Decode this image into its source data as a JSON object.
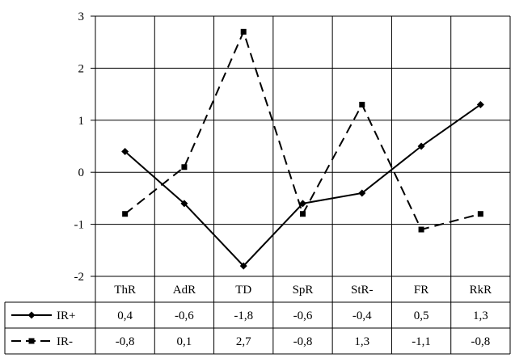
{
  "chart_data": {
    "type": "line",
    "categories": [
      "ThR",
      "AdR",
      "TD",
      "SpR",
      "StR-",
      "FR",
      "RkR"
    ],
    "ylim": [
      -2,
      3
    ],
    "yticks": [
      "3",
      "2",
      "1",
      "0",
      "-1",
      "-2"
    ],
    "ytick_values": [
      3,
      2,
      1,
      0,
      -1,
      -2
    ],
    "grid": true,
    "legend": "data-table-left",
    "series": [
      {
        "name": "IR+",
        "values": [
          0.4,
          -0.6,
          -1.8,
          -0.6,
          -0.4,
          0.5,
          1.3
        ],
        "labels": [
          "0,4",
          "-0,6",
          "-1,8",
          "-0,6",
          "-0,4",
          "0,5",
          "1,3"
        ],
        "marker": "diamond",
        "line_style": "solid",
        "color": "#000000"
      },
      {
        "name": "IR-",
        "values": [
          -0.8,
          0.1,
          2.7,
          -0.8,
          1.3,
          -1.1,
          -0.8
        ],
        "labels": [
          "-0,8",
          "0,1",
          "2,7",
          "-0,8",
          "1,3",
          "-1,1",
          "-0,8"
        ],
        "marker": "square",
        "line_style": "dashed",
        "color": "#000000"
      }
    ]
  }
}
